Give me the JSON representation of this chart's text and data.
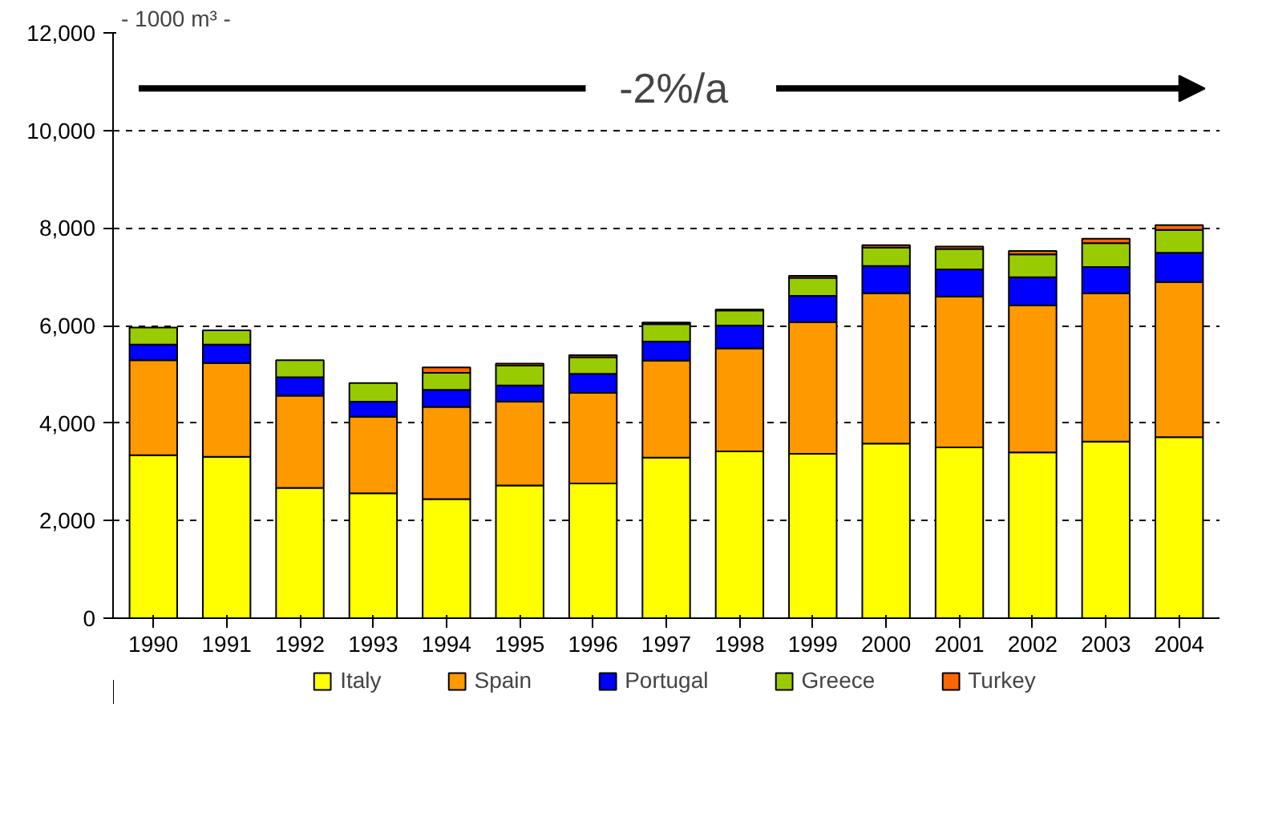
{
  "chart_data": {
    "type": "bar",
    "stacked": true,
    "ylabel": "- 1000 m³ -",
    "categories": [
      "1990",
      "1991",
      "1992",
      "1993",
      "1994",
      "1995",
      "1996",
      "1997",
      "1998",
      "1999",
      "2000",
      "2001",
      "2002",
      "2003",
      "2004"
    ],
    "series": [
      {
        "name": "Italy",
        "color": "#ffff00",
        "values": [
          3340,
          3310,
          2670,
          2560,
          2440,
          2720,
          2760,
          3290,
          3420,
          3370,
          3580,
          3500,
          3400,
          3620,
          3710
        ]
      },
      {
        "name": "Spain",
        "color": "#ff9900",
        "values": [
          1950,
          1920,
          1890,
          1570,
          1890,
          1720,
          1860,
          1990,
          2110,
          2700,
          3080,
          3090,
          3010,
          3040,
          3180
        ]
      },
      {
        "name": "Portugal",
        "color": "#0000ff",
        "values": [
          320,
          380,
          380,
          310,
          350,
          330,
          390,
          390,
          470,
          540,
          560,
          560,
          580,
          540,
          600
        ]
      },
      {
        "name": "Greece",
        "color": "#99cc00",
        "values": [
          350,
          290,
          350,
          380,
          350,
          410,
          340,
          360,
          310,
          370,
          380,
          420,
          470,
          490,
          470
        ]
      },
      {
        "name": "Turkey",
        "color": "#ff6600",
        "values": [
          0,
          0,
          0,
          0,
          110,
          40,
          40,
          30,
          20,
          40,
          50,
          50,
          70,
          90,
          100
        ]
      }
    ],
    "ylim": [
      0,
      12000
    ],
    "yticks": [
      0,
      {
        "value": 2000,
        "label": "2,000"
      },
      {
        "value": 4000,
        "label": "4,000"
      },
      {
        "value": 6000,
        "label": "6,000"
      },
      {
        "value": 8000,
        "label": "8,000"
      },
      {
        "value": 10000,
        "label": "10,000"
      },
      {
        "value": 12000,
        "label": "12,000"
      }
    ],
    "grid": "y",
    "legend": "bottom",
    "annotations": [
      "-2%/a"
    ]
  }
}
